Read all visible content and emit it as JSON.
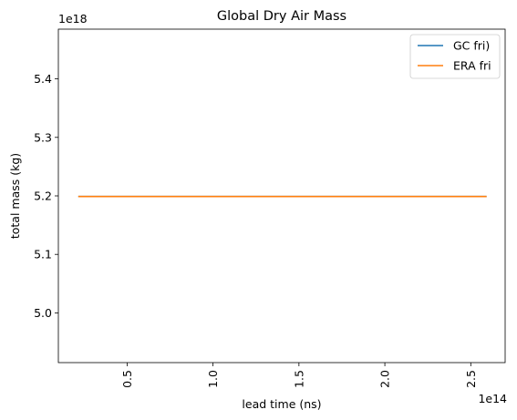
{
  "chart_data": {
    "type": "line",
    "title": "Global Dry Air Mass",
    "xlabel": "lead time (ns)",
    "ylabel": "total mass (kg)",
    "x_offset_label": "1e14",
    "y_offset_label": "1e18",
    "xlim": [
      0.1,
      2.7
    ],
    "ylim": [
      4.915,
      5.485
    ],
    "x_ticks": [
      0.5,
      1.0,
      1.5,
      2.0,
      2.5
    ],
    "x_tick_labels": [
      "0.5",
      "1.0",
      "1.5",
      "2.0",
      "2.5"
    ],
    "y_ticks": [
      5.0,
      5.1,
      5.2,
      5.3,
      5.4
    ],
    "y_tick_labels": [
      "5.0",
      "5.1",
      "5.2",
      "5.3",
      "5.4"
    ],
    "grid": false,
    "legend_position": "top-right",
    "series": [
      {
        "name": "GC fri)",
        "color": "#1f77b4",
        "x": [
          0.216,
          2.592
        ],
        "y": [
          5.199,
          5.199
        ]
      },
      {
        "name": "ERA fri",
        "color": "#ff7f0e",
        "x": [
          0.216,
          2.592
        ],
        "y": [
          5.199,
          5.199
        ]
      }
    ]
  }
}
